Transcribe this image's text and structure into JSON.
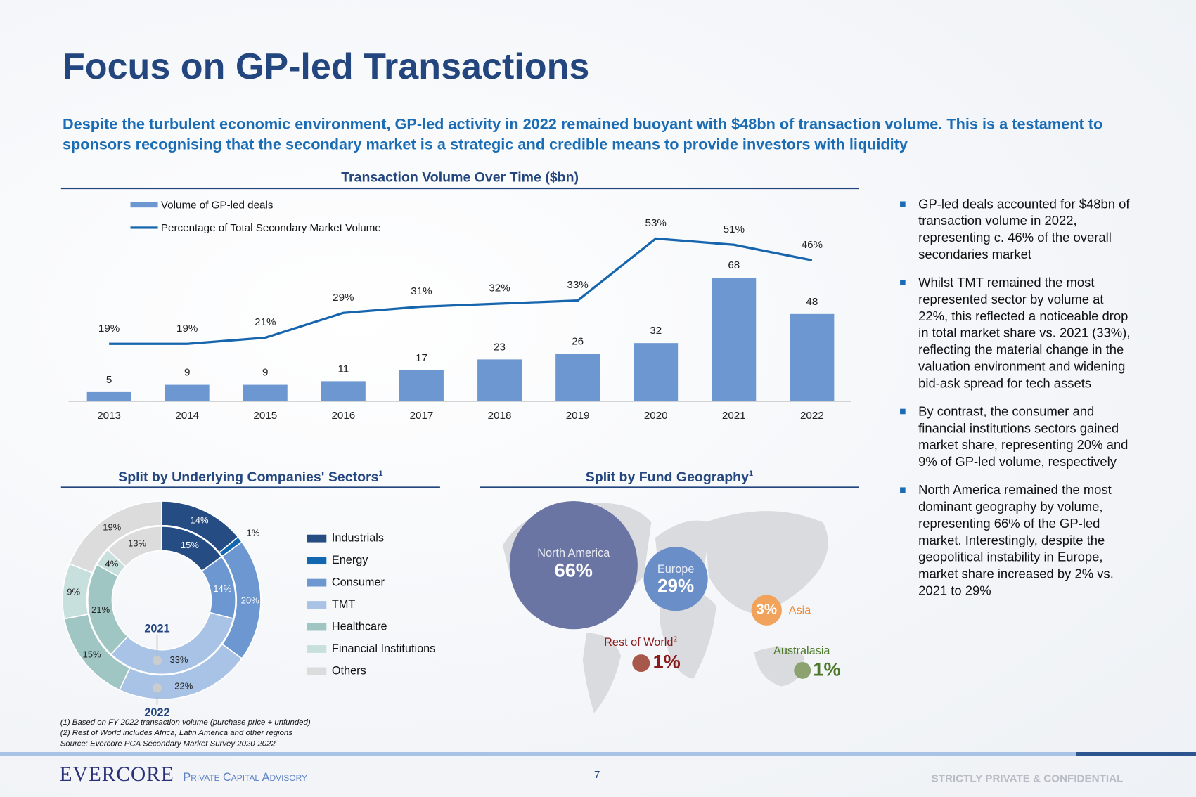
{
  "title": "Focus on GP-led Transactions",
  "subtitle": "Despite the turbulent economic environment, GP-led activity in 2022 remained buoyant with $48bn of transaction volume. This is a testament to sponsors recognising that the secondary market is a strategic and credible means to provide investors with liquidity",
  "chart_data": [
    {
      "type": "bar+line",
      "title": "Transaction Volume Over Time ($bn)",
      "categories": [
        "2013",
        "2014",
        "2015",
        "2016",
        "2017",
        "2018",
        "2019",
        "2020",
        "2021",
        "2022"
      ],
      "series": [
        {
          "name": "Volume of GP-led deals",
          "type": "bar",
          "values": [
            5,
            9,
            9,
            11,
            17,
            23,
            26,
            32,
            68,
            48
          ],
          "labels": [
            "5",
            "9",
            "9",
            "11",
            "17",
            "23",
            "26",
            "32",
            "68",
            "48"
          ],
          "color": "#6d97d0"
        },
        {
          "name": "Percentage of Total Secondary Market Volume",
          "type": "line",
          "values": [
            19,
            19,
            21,
            29,
            31,
            32,
            33,
            53,
            51,
            46
          ],
          "labels": [
            "19%",
            "19%",
            "21%",
            "29%",
            "31%",
            "32%",
            "33%",
            "53%",
            "51%",
            "46%"
          ],
          "color": "#1766ad"
        }
      ],
      "legend": "top-left"
    },
    {
      "type": "pie",
      "title": "Split by Underlying Companies' Sectors",
      "title_sup": "1",
      "categories": [
        "Industrials",
        "Energy",
        "Consumer",
        "TMT",
        "Healthcare",
        "Financial Institutions",
        "Others"
      ],
      "colors": [
        "#254d84",
        "#1168b0",
        "#6d97d0",
        "#a8c3e6",
        "#9fc6c2",
        "#c7e0de",
        "#dcdcdc"
      ],
      "series": [
        {
          "name": "2021",
          "ring": "inner",
          "values": [
            15,
            0,
            14,
            33,
            21,
            4,
            13
          ]
        },
        {
          "name": "2022",
          "ring": "outer",
          "values": [
            14,
            1,
            20,
            22,
            15,
            9,
            19
          ]
        }
      ],
      "legend": "right"
    }
  ],
  "geo": {
    "title": "Split by Fund Geography",
    "title_sup": "1",
    "regions": [
      {
        "name": "North America",
        "value": "66%",
        "color": "#6a75a3"
      },
      {
        "name": "Europe",
        "value": "29%",
        "color": "#6a8fc8"
      },
      {
        "name": "Asia",
        "value": "3%",
        "color": "#f1a35b"
      },
      {
        "name": "Rest of World",
        "sup": "2",
        "value": "1%",
        "color": "#a8584a",
        "text_color": "#8b1a1a"
      },
      {
        "name": "Australasia",
        "value": "1%",
        "color": "#8ca36f",
        "text_color": "#4d7a2a"
      }
    ]
  },
  "bullets": [
    "GP-led deals accounted for $48bn of transaction volume in 2022, representing c. 46% of the overall secondaries market",
    "Whilst TMT remained the most represented sector by volume at 22%, this reflected a noticeable drop in total market share vs. 2021 (33%), reflecting the material change in the valuation environment and widening bid-ask spread for tech assets",
    "By contrast, the consumer and financial institutions sectors gained market share, representing 20% and 9% of GP-led volume, respectively",
    "North America remained the most dominant geography by volume, representing 66% of the GP-led market. Interestingly, despite the geopolitical instability in Europe, market share increased by 2% vs. 2021 to 29%"
  ],
  "footnotes": [
    "(1)    Based on FY 2022 transaction volume (purchase price + unfunded)",
    "(2)    Rest of World includes Africa, Latin America and other regions",
    "Source: Evercore PCA Secondary Market Survey 2020-2022"
  ],
  "footer": {
    "logo": "EVERCORE",
    "division": "Private Capital Advisory",
    "page": "7",
    "confidential": "STRICTLY PRIVATE & CONFIDENTIAL"
  }
}
